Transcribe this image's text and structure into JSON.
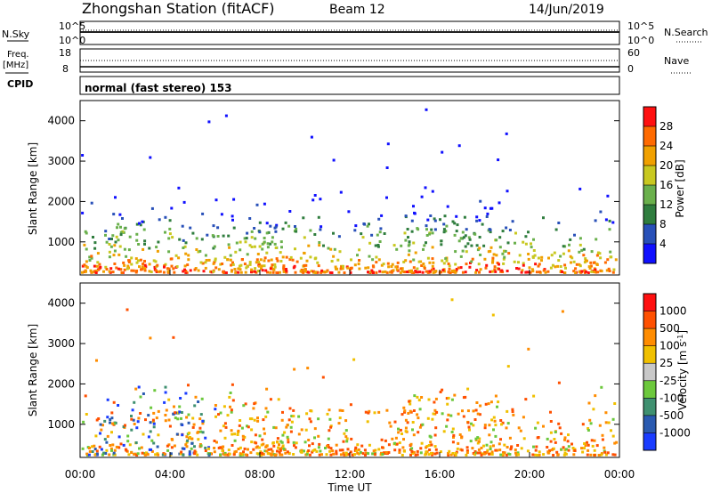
{
  "header": {
    "station": "Zhongshan Station (fitACF)",
    "beam": "Beam 12",
    "date": "14/Jun/2019"
  },
  "panels": {
    "nsky_label": "N.Sky",
    "nsky_ticks": [
      "10^5",
      "10^0"
    ],
    "nsearch_label": "N.Search",
    "nsearch_ticks": [
      "10^5",
      "10^0"
    ],
    "freq_label_top": "Freq.",
    "freq_label_unit": "[MHz]",
    "freq_ticks": [
      "18",
      "8"
    ],
    "nave_label": "Nave",
    "nave_ticks": [
      "60",
      "0"
    ],
    "cpid_label": "CPID",
    "cpid_text": "normal (fast stereo) 153"
  },
  "chart_data": [
    {
      "type": "heatmap",
      "ylabel": "Slant Range [km]",
      "y_ticks": [
        "4000",
        "3000",
        "2000",
        "1000"
      ],
      "ylim": [
        180,
        4500
      ],
      "colorbar": {
        "label": "Power [dB]",
        "ticks": [
          "28",
          "24",
          "20",
          "16",
          "12",
          "8",
          "4"
        ],
        "range": [
          0,
          32
        ],
        "colors": [
          "#1010ff",
          "#2850b8",
          "#2f7d3e",
          "#6ab04c",
          "#c8c820",
          "#f0a000",
          "#ff6a00",
          "#ff1010"
        ]
      }
    },
    {
      "type": "heatmap",
      "ylabel": "Velocity",
      "ylabel_unit": "[m s",
      "ylabel_sup": "-1",
      "ylabel_end": "]",
      "y_label_left": "Slant Range [km]",
      "y_ticks": [
        "4000",
        "3000",
        "2000",
        "1000"
      ],
      "ylim": [
        180,
        4500
      ],
      "colorbar": {
        "ticks": [
          "1000",
          "500",
          "100",
          "25",
          "-25",
          "-100",
          "-500",
          "-1000"
        ],
        "colors": [
          "#1a3cff",
          "#2a5ab0",
          "#3f9070",
          "#6cc83c",
          "#c8c8c8",
          "#f0c000",
          "#ff8c00",
          "#ff5000",
          "#ff1010"
        ]
      }
    }
  ],
  "x_axis": {
    "ticks": [
      "00:00",
      "04:00",
      "08:00",
      "12:00",
      "16:00",
      "20:00",
      "00:00"
    ],
    "label": "Time UT"
  }
}
